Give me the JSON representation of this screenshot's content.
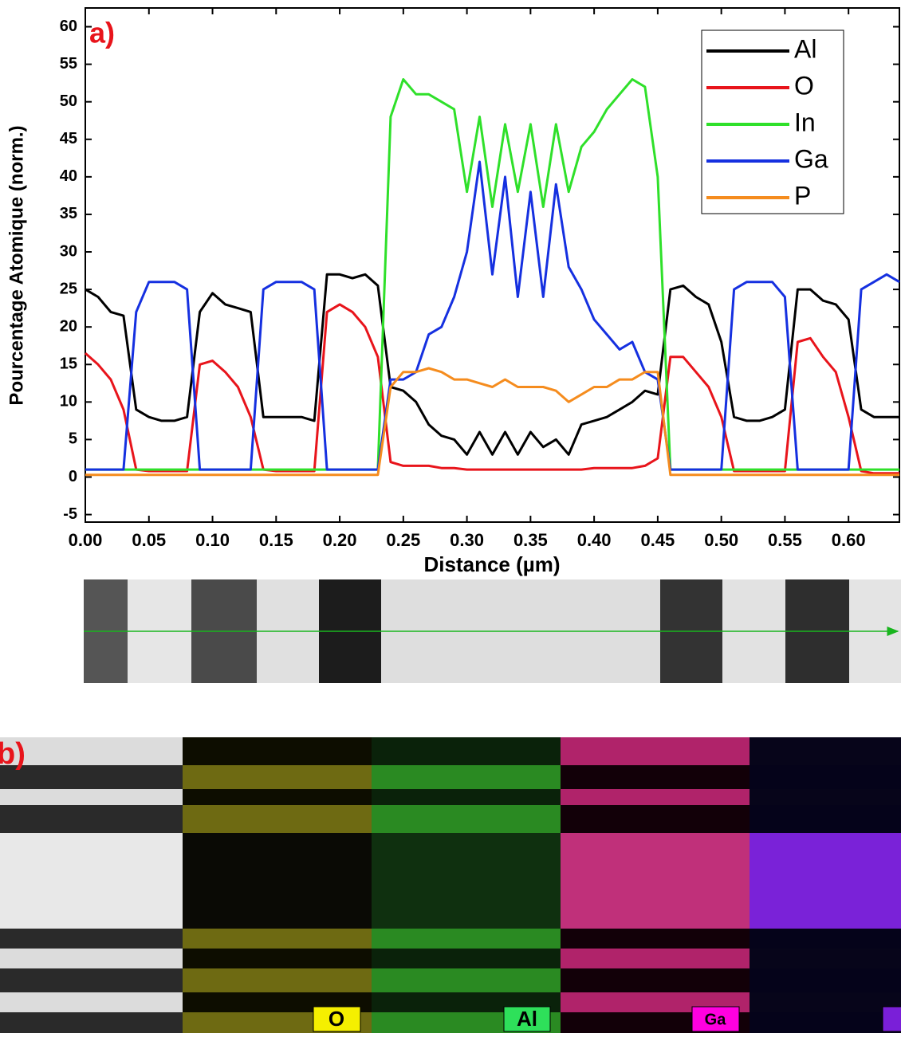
{
  "chart_data": {
    "type": "line",
    "annotation": "a)",
    "x_label": "Distance (µm)",
    "y_label": "Pourcentage Atomique (norm.)",
    "x": [
      0,
      0.01,
      0.02,
      0.03,
      0.04,
      0.05,
      0.06,
      0.07,
      0.08,
      0.09,
      0.1,
      0.11,
      0.12,
      0.13,
      0.14,
      0.15,
      0.16,
      0.17,
      0.18,
      0.19,
      0.2,
      0.21,
      0.22,
      0.23,
      0.24,
      0.25,
      0.26,
      0.27,
      0.28,
      0.29,
      0.3,
      0.31,
      0.32,
      0.33,
      0.34,
      0.35,
      0.36,
      0.37,
      0.38,
      0.39,
      0.4,
      0.41,
      0.42,
      0.43,
      0.44,
      0.45,
      0.46,
      0.47,
      0.48,
      0.49,
      0.5,
      0.51,
      0.52,
      0.53,
      0.54,
      0.55,
      0.56,
      0.57,
      0.58,
      0.59,
      0.6,
      0.61,
      0.62,
      0.63,
      0.64
    ],
    "series": [
      {
        "name": "Al",
        "color": "#000000",
        "values": [
          25,
          24,
          22,
          21.5,
          9,
          8,
          7.5,
          7.5,
          8,
          22,
          24.5,
          23,
          22.5,
          22,
          8,
          8,
          8,
          8,
          7.5,
          27,
          27,
          26.5,
          27,
          25.5,
          12,
          11.5,
          10,
          7,
          5.5,
          5,
          3,
          6,
          3,
          6,
          3,
          6,
          4,
          5,
          3,
          7,
          7.5,
          8,
          9,
          10,
          11.5,
          11,
          25,
          25.5,
          24,
          23,
          18,
          8,
          7.5,
          7.5,
          8,
          9,
          25,
          25,
          23.5,
          23,
          21,
          9,
          8,
          8,
          8
        ]
      },
      {
        "name": "O",
        "color": "#e8141b",
        "values": [
          16.5,
          15,
          13,
          9,
          1,
          0.8,
          0.8,
          0.8,
          0.8,
          15,
          15.5,
          14,
          12,
          8,
          1,
          0.8,
          0.8,
          0.8,
          0.8,
          22,
          23,
          22,
          20,
          16,
          2,
          1.5,
          1.5,
          1.5,
          1.2,
          1.2,
          1,
          1,
          1,
          1,
          1,
          1,
          1,
          1,
          1,
          1,
          1.2,
          1.2,
          1.2,
          1.2,
          1.5,
          2.5,
          16,
          16,
          14,
          12,
          8,
          0.8,
          0.8,
          0.8,
          0.8,
          0.8,
          18,
          18.5,
          16,
          14,
          8,
          0.8,
          0.5,
          0.5,
          0.5
        ]
      },
      {
        "name": "In",
        "color": "#2fe02a",
        "values": [
          1,
          1,
          1,
          1,
          1,
          1,
          1,
          1,
          1,
          1,
          1,
          1,
          1,
          1,
          1,
          1,
          1,
          1,
          1,
          1,
          1,
          1,
          1,
          1,
          48,
          53,
          51,
          51,
          50,
          49,
          38,
          48,
          36,
          47,
          38,
          47,
          36,
          47,
          38,
          44,
          46,
          49,
          51,
          53,
          52,
          40,
          1,
          1,
          1,
          1,
          1,
          1,
          1,
          1,
          1,
          1,
          1,
          1,
          1,
          1,
          1,
          1,
          1,
          1,
          1
        ]
      },
      {
        "name": "Ga",
        "color": "#1530e0",
        "values": [
          1,
          1,
          1,
          1,
          22,
          26,
          26,
          26,
          25,
          1,
          1,
          1,
          1,
          1,
          25,
          26,
          26,
          26,
          25,
          1,
          1,
          1,
          1,
          1,
          13,
          13,
          14,
          19,
          20,
          24,
          30,
          42,
          27,
          40,
          24,
          38,
          24,
          39,
          28,
          25,
          21,
          19,
          17,
          18,
          14,
          13,
          1,
          1,
          1,
          1,
          1,
          25,
          26,
          26,
          26,
          24,
          1,
          1,
          1,
          1,
          1,
          25,
          26,
          27,
          26
        ]
      },
      {
        "name": "P",
        "color": "#f58c1e",
        "values": [
          0.3,
          0.3,
          0.3,
          0.3,
          0.3,
          0.3,
          0.3,
          0.3,
          0.3,
          0.3,
          0.3,
          0.3,
          0.3,
          0.3,
          0.3,
          0.3,
          0.3,
          0.3,
          0.3,
          0.3,
          0.3,
          0.3,
          0.3,
          0.3,
          12,
          14,
          14,
          14.5,
          14,
          13,
          13,
          12.5,
          12,
          13,
          12,
          12,
          12,
          11.5,
          10,
          11,
          12,
          12,
          13,
          13,
          14,
          14,
          0.3,
          0.3,
          0.3,
          0.3,
          0.3,
          0.3,
          0.3,
          0.3,
          0.3,
          0.3,
          0.3,
          0.3,
          0.3,
          0.3,
          0.3,
          0.3,
          0.3,
          0.3,
          0.3
        ]
      }
    ],
    "xlim": [
      0,
      0.64
    ],
    "ylim": [
      -6,
      62.5
    ],
    "xticks": [
      {
        "value": 0,
        "label": "0.00"
      },
      0.05,
      {
        "value": 0.1,
        "label": "0.10"
      },
      0.15,
      {
        "value": 0.2,
        "label": "0.20"
      },
      0.25,
      {
        "value": 0.3,
        "label": "0.30"
      },
      0.35,
      {
        "value": 0.4,
        "label": "0.40"
      },
      0.45,
      {
        "value": 0.5,
        "label": "0.50"
      },
      0.55,
      {
        "value": 0.6,
        "label": "0.60"
      }
    ],
    "yticks": [
      -5,
      0,
      5,
      10,
      15,
      20,
      25,
      30,
      35,
      40,
      45,
      50,
      55,
      60
    ],
    "legend": "top-right"
  },
  "panel_b": {
    "label": "b)",
    "maps": [
      "O",
      "Al",
      "Ga"
    ]
  }
}
